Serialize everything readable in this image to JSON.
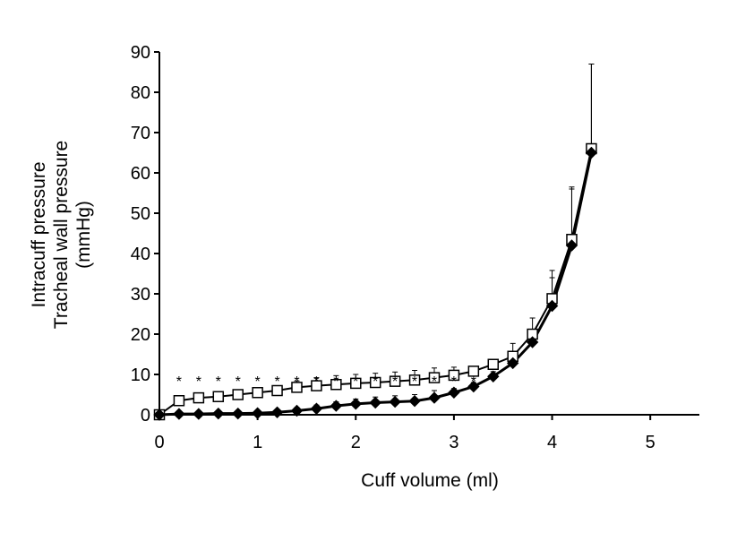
{
  "chart_data": {
    "type": "line",
    "xlabel": "Cuff volume (ml)",
    "ylabel_lines": [
      "Intracuff pressure",
      "Tracheal wall pressure",
      "(mmHg)"
    ],
    "xlim": [
      0,
      5.5
    ],
    "ylim": [
      0,
      90
    ],
    "x_ticks": [
      0,
      1,
      2,
      3,
      4,
      5
    ],
    "y_ticks": [
      0,
      10,
      20,
      30,
      40,
      50,
      60,
      70,
      80,
      90
    ],
    "grid": false,
    "legend": "none",
    "x": [
      0,
      0.2,
      0.4,
      0.6,
      0.8,
      1.0,
      1.2,
      1.4,
      1.6,
      1.8,
      2.0,
      2.2,
      2.4,
      2.6,
      2.8,
      3.0,
      3.2,
      3.4,
      3.6,
      3.8,
      4.0,
      4.2,
      4.4
    ],
    "series": [
      {
        "marker": "open-square",
        "color": "#000000",
        "values": [
          0,
          3.5,
          4.2,
          4.5,
          5.0,
          5.5,
          6.0,
          6.8,
          7.2,
          7.5,
          7.8,
          8.0,
          8.3,
          8.6,
          9.2,
          9.8,
          10.8,
          12.5,
          14.5,
          20.0,
          28.8,
          43.5,
          66.0
        ],
        "errors": [
          0,
          0.8,
          0.8,
          1.0,
          1.0,
          1.1,
          1.2,
          1.6,
          2.0,
          2.2,
          2.2,
          2.3,
          2.3,
          2.4,
          2.4,
          2.0,
          1.2,
          1.2,
          3.2,
          4.0,
          7.0,
          13.0,
          21.0
        ]
      },
      {
        "marker": "filled-diamond",
        "color": "#000000",
        "values": [
          0,
          0.2,
          0.2,
          0.3,
          0.3,
          0.4,
          0.6,
          1.0,
          1.5,
          2.2,
          2.7,
          3.0,
          3.2,
          3.4,
          4.2,
          5.5,
          7.0,
          9.5,
          12.8,
          18.0,
          27.0,
          42.0,
          65.0
        ],
        "errors": [
          0,
          0.3,
          0.3,
          0.4,
          0.4,
          0.5,
          0.6,
          0.8,
          0.9,
          1.0,
          1.2,
          1.4,
          1.5,
          1.6,
          1.8,
          1.0,
          1.0,
          1.2,
          2.0,
          2.5,
          7.0,
          14.0,
          22.0
        ]
      }
    ],
    "annotations": {
      "symbol": "*",
      "x": [
        0.2,
        0.4,
        0.6,
        0.8,
        1.0,
        1.2,
        1.4,
        1.6,
        1.8,
        2.0,
        2.2,
        2.4,
        2.6,
        2.8,
        3.0,
        3.2
      ]
    }
  }
}
